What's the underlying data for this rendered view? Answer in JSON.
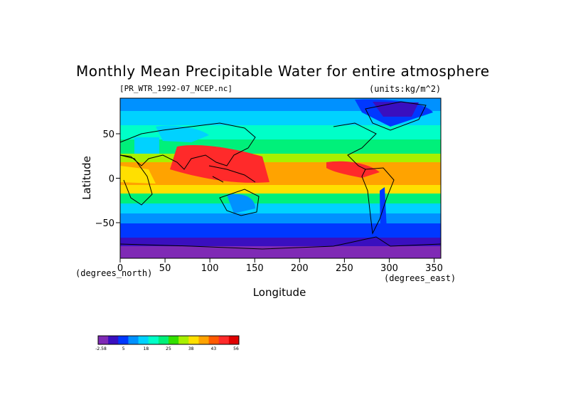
{
  "title": "Monthly Mean Precipitable Water for entire atmosphere",
  "subtitle": "[PR_WTR_1992-07_NCEP.nc]",
  "units": "(units:kg/m^2)",
  "xlabel": "Longitude",
  "ylabel": "Latitude",
  "x_unit": "(degrees_east)",
  "y_unit": "(degrees_north)",
  "x_ticks": [
    "0",
    "50",
    "100",
    "150",
    "200",
    "250",
    "300",
    "350"
  ],
  "y_ticks": [
    "50",
    "0",
    "−50"
  ],
  "colorbar": {
    "labels": [
      "-2.58",
      "5",
      "18",
      "25",
      "38",
      "43",
      "56"
    ],
    "colors": [
      "#7f2ab5",
      "#3a0fbf",
      "#0038ff",
      "#0091ff",
      "#00d2ff",
      "#00ffc8",
      "#00f07a",
      "#33e000",
      "#a8f000",
      "#ffe000",
      "#ffa300",
      "#ff5a00",
      "#ff2a2a",
      "#e00000"
    ]
  },
  "map": {
    "lon_range": [
      0,
      357.5
    ],
    "lat_range": [
      -90,
      90
    ],
    "colors": {
      "polar_south": "#7f2ab5",
      "very_low": "#3a0fbf",
      "low": "#0038ff",
      "mid_low": "#0091ff",
      "mid": "#00d2ff",
      "mid_high": "#00ffc8",
      "green": "#00f07a",
      "yellow_green": "#a8f000",
      "yellow": "#ffe000",
      "orange": "#ffa300",
      "red": "#ff2a2a"
    }
  }
}
